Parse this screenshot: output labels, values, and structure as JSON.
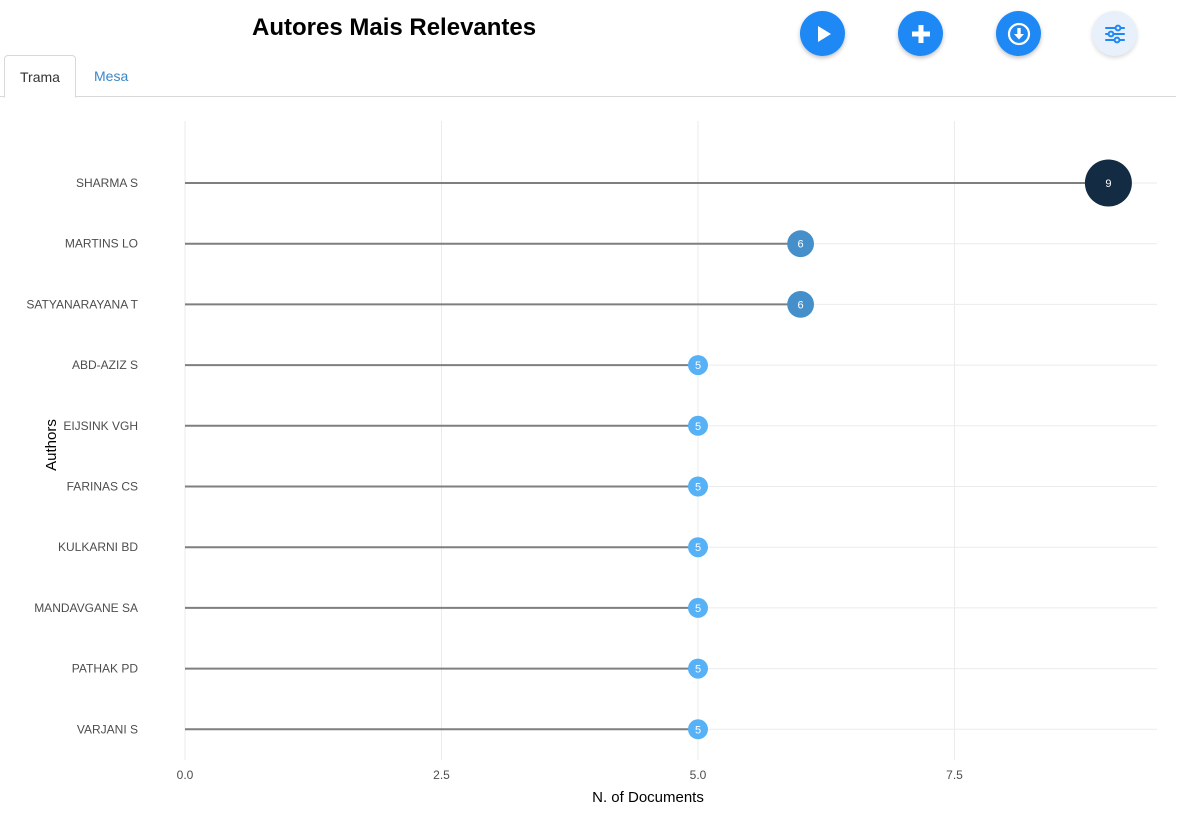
{
  "header": {
    "title": "Autores Mais Relevantes",
    "buttons": [
      {
        "name": "play-button",
        "icon": "play-icon"
      },
      {
        "name": "add-button",
        "icon": "plus-icon"
      },
      {
        "name": "download-button",
        "icon": "download-icon"
      },
      {
        "name": "settings-button",
        "icon": "sliders-icon"
      }
    ]
  },
  "tabs": [
    {
      "label": "Trama",
      "active": true
    },
    {
      "label": "Mesa",
      "active": false
    }
  ],
  "chart_data": {
    "type": "lollipop",
    "title": "",
    "xlabel": "N. of Documents",
    "ylabel": "Authors",
    "xlim": [
      0,
      9.5
    ],
    "xticks": [
      0,
      2.5,
      5,
      7.5
    ],
    "xtick_labels": [
      "0.0",
      "2.5",
      "5.0",
      "7.5"
    ],
    "grid": true,
    "legend": "none",
    "categories": [
      "SHARMA S",
      "MARTINS LO",
      "SATYANARAYANA T",
      "ABD-AZIZ S",
      "EIJSINK VGH",
      "FARINAS CS",
      "KULKARNI BD",
      "MANDAVGANE SA",
      "PATHAK PD",
      "VARJANI S"
    ],
    "values": [
      9,
      6,
      6,
      5,
      5,
      5,
      5,
      5,
      5,
      5
    ],
    "colors": {
      "high": "#132b43",
      "mid": "#3f86c4",
      "low": "#56b1f7",
      "stem": "#7f7f7f",
      "grid": "#ebebeb"
    }
  }
}
